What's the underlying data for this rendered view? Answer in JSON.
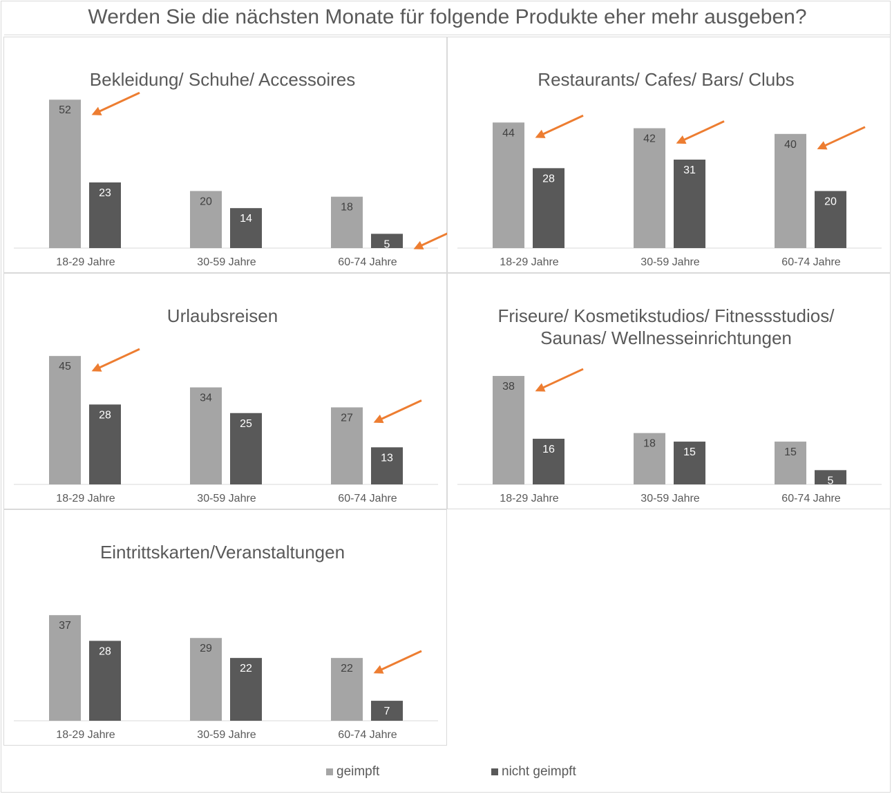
{
  "title": "Werden Sie die nächsten Monate für folgende Produkte eher mehr ausgeben?",
  "colors": {
    "geimpft": "#a5a5a5",
    "nicht_geimpft": "#595959",
    "arrow": "#ed7d31"
  },
  "legend": [
    {
      "label": "geimpft",
      "color": "#a5a5a5"
    },
    {
      "label": "nicht geimpft",
      "color": "#595959"
    }
  ],
  "chart_data": [
    {
      "type": "bar",
      "title": "Bekleidung/ Schuhe/ Accessoires",
      "categories": [
        "18-29 Jahre",
        "30-59 Jahre",
        "60-74 Jahre"
      ],
      "series": [
        {
          "name": "geimpft",
          "values": [
            52,
            20,
            18
          ]
        },
        {
          "name": "nicht geimpft",
          "values": [
            23,
            14,
            5
          ]
        }
      ],
      "arrows": [
        "18-29 Jahre:geimpft",
        "60-74 Jahre:nicht geimpft"
      ]
    },
    {
      "type": "bar",
      "title": "Restaurants/ Cafes/ Bars/ Clubs",
      "categories": [
        "18-29 Jahre",
        "30-59 Jahre",
        "60-74 Jahre"
      ],
      "series": [
        {
          "name": "geimpft",
          "values": [
            44,
            42,
            40
          ]
        },
        {
          "name": "nicht geimpft",
          "values": [
            28,
            31,
            20
          ]
        }
      ],
      "arrows": [
        "18-29 Jahre:geimpft",
        "30-59 Jahre:geimpft",
        "60-74 Jahre:geimpft"
      ]
    },
    {
      "type": "bar",
      "title": "Urlaubsreisen",
      "categories": [
        "18-29 Jahre",
        "30-59 Jahre",
        "60-74 Jahre"
      ],
      "series": [
        {
          "name": "geimpft",
          "values": [
            45,
            34,
            27
          ]
        },
        {
          "name": "nicht geimpft",
          "values": [
            28,
            25,
            13
          ]
        }
      ],
      "arrows": [
        "18-29 Jahre:geimpft",
        "60-74 Jahre:geimpft"
      ]
    },
    {
      "type": "bar",
      "title": "Friseure/ Kosmetikstudios/ Fitnessstudios/ Saunas/ Wellnesseinrichtungen",
      "title_lines": [
        "Friseure/ Kosmetikstudios/ Fitnessstudios/",
        "Saunas/ Wellnesseinrichtungen"
      ],
      "categories": [
        "18-29 Jahre",
        "30-59 Jahre",
        "60-74 Jahre"
      ],
      "series": [
        {
          "name": "geimpft",
          "values": [
            38,
            18,
            15
          ]
        },
        {
          "name": "nicht geimpft",
          "values": [
            16,
            15,
            5
          ]
        }
      ],
      "arrows": [
        "18-29 Jahre:geimpft"
      ]
    },
    {
      "type": "bar",
      "title": "Eintrittskarten/Veranstaltungen",
      "categories": [
        "18-29 Jahre",
        "30-59 Jahre",
        "60-74 Jahre"
      ],
      "series": [
        {
          "name": "geimpft",
          "values": [
            37,
            29,
            22
          ]
        },
        {
          "name": "nicht geimpft",
          "values": [
            28,
            22,
            7
          ]
        }
      ],
      "arrows": [
        "60-74 Jahre:geimpft"
      ]
    }
  ]
}
